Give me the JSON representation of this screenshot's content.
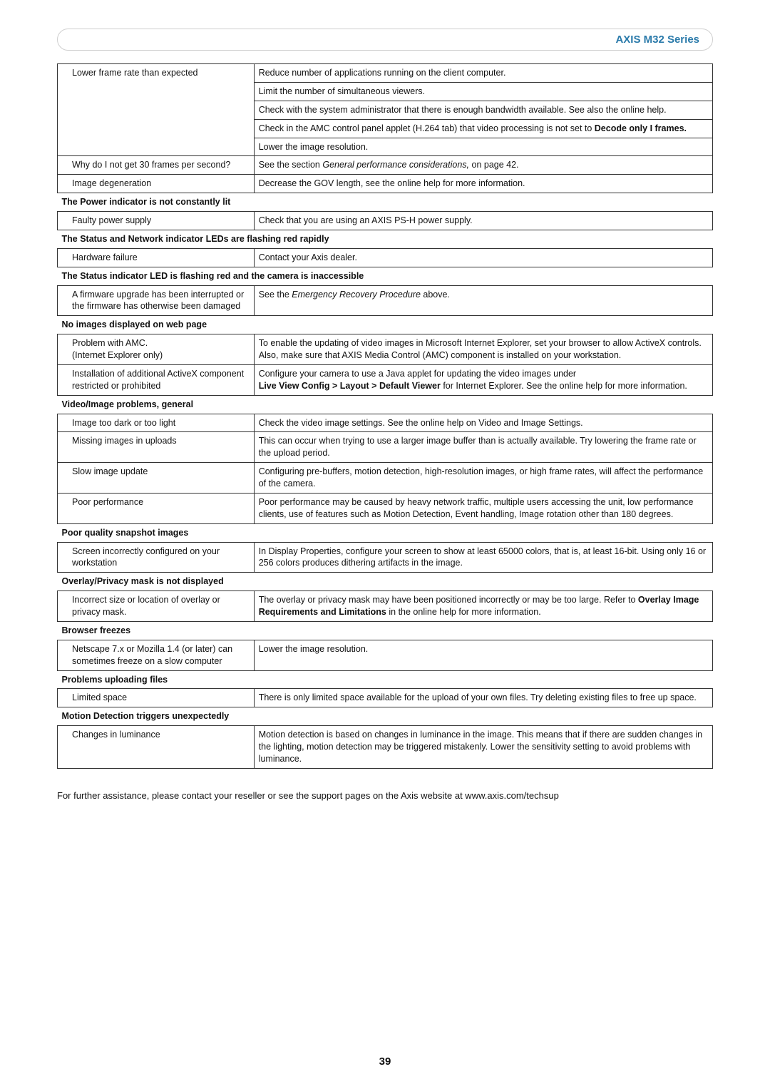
{
  "colors": {
    "headerText": "#2a7aaa",
    "bodyText": "#111111",
    "border": "#333333",
    "bannerBorder": "#cfcfcf",
    "background": "#ffffff"
  },
  "typography": {
    "bodyFontSizePt": 9,
    "headerFontSizePt": 11,
    "pageNumFontSizePt": 11,
    "fontFamily": "Helvetica Neue, Arial, sans-serif"
  },
  "header": {
    "title": "AXIS M32 Series"
  },
  "table": {
    "columnWidths": [
      "30%",
      "70%"
    ],
    "rows": [
      {
        "type": "data-first",
        "left": "Lower frame rate than expected",
        "right": "Reduce number of applications running on the client computer."
      },
      {
        "type": "data-cont",
        "right": "Limit the number of simultaneous viewers."
      },
      {
        "type": "data-cont",
        "right": "Check with the system administrator that there is enough bandwidth available. See also the online help."
      },
      {
        "type": "data-cont",
        "rightPrefix": "Check in the AMC control panel applet (H.264 tab) that video processing is not set to ",
        "rightBold": "Decode only I frames."
      },
      {
        "type": "data-cont",
        "right": "Lower the image resolution."
      },
      {
        "type": "data",
        "left": "Why do I not get 30 frames per second?",
        "rightPrefix": "See the section ",
        "rightItalic": "General performance considerations,",
        "rightSuffix": " on page 42."
      },
      {
        "type": "data",
        "left": "Image degeneration",
        "right": "Decrease the GOV length, see the online help for more information."
      },
      {
        "type": "section",
        "label": "The Power indicator is not constantly lit"
      },
      {
        "type": "data",
        "left": "Faulty power supply",
        "right": "Check that you are using an AXIS PS-H power supply."
      },
      {
        "type": "section",
        "label": "The Status and Network indicator LEDs are flashing red rapidly"
      },
      {
        "type": "data",
        "left": "Hardware failure",
        "right": "Contact your Axis dealer."
      },
      {
        "type": "section",
        "label": "The Status indicator LED is flashing red and the camera is inaccessible"
      },
      {
        "type": "data",
        "left": "A firmware upgrade has been interrupted or the firmware has otherwise been damaged",
        "rightPrefix": "See the ",
        "rightItalic": "Emergency Recovery Procedure",
        "rightSuffix": " above."
      },
      {
        "type": "section",
        "label": "No images displayed on web page"
      },
      {
        "type": "data",
        "left": "Problem with AMC.\n(Internet Explorer only)",
        "right": "To enable the updating of video images in Microsoft Internet Explorer, set your browser to allow ActiveX controls. Also, make sure that AXIS Media Control (AMC) component is installed on your workstation."
      },
      {
        "type": "data",
        "left": "Installation of additional ActiveX component restricted or prohibited",
        "rightPrefix": "Configure your camera to use a Java applet for updating the video images under\n",
        "rightBold": "Live View Config > Layout > Default Viewer",
        "rightSuffix": " for Internet Explorer. See the online help for more information."
      },
      {
        "type": "section",
        "label": "Video/Image problems, general"
      },
      {
        "type": "data",
        "left": "Image too dark or too light",
        "right": "Check the video image settings. See the online help on Video and Image Settings."
      },
      {
        "type": "data",
        "left": "Missing images in uploads",
        "right": "This can occur when trying to use a larger image buffer than is actually available. Try lowering the frame rate or the upload period."
      },
      {
        "type": "data",
        "left": "Slow image update",
        "right": "Configuring pre-buffers, motion detection, high-resolution images, or high frame rates, will affect the performance of the camera."
      },
      {
        "type": "data",
        "left": "Poor performance",
        "right": "Poor performance may be caused by heavy network traffic, multiple users accessing the unit, low performance clients, use of features such as Motion Detection, Event handling, Image rotation other than 180 degrees."
      },
      {
        "type": "section",
        "label": "Poor quality snapshot images"
      },
      {
        "type": "data",
        "left": "Screen incorrectly configured on your workstation",
        "right": "In Display Properties, configure your screen to show at least 65000 colors, that is, at least 16-bit. Using only 16 or 256 colors produces dithering artifacts in the image."
      },
      {
        "type": "section",
        "label": "Overlay/Privacy mask is not displayed"
      },
      {
        "type": "data",
        "left": "Incorrect size or location of overlay or privacy mask.",
        "rightPrefix": "The overlay or privacy mask may have been positioned incorrectly or may be too large. Refer to ",
        "rightBold": "Overlay Image Requirements and Limitations",
        "rightSuffix": " in the online help for more information."
      },
      {
        "type": "section",
        "label": "Browser freezes"
      },
      {
        "type": "data",
        "left": "Netscape 7.x or Mozilla 1.4 (or later) can sometimes freeze on a slow computer",
        "right": "Lower the image resolution."
      },
      {
        "type": "section",
        "label": "Problems uploading files"
      },
      {
        "type": "data",
        "left": "Limited space",
        "right": "There is only limited space available for the upload of your own files. Try deleting existing files to free up space."
      },
      {
        "type": "section",
        "label": "Motion Detection triggers unexpectedly"
      },
      {
        "type": "data",
        "left": "Changes in luminance",
        "right": "Motion detection is based on changes in luminance in the image. This means that if there are sudden changes in the lighting, motion detection may be triggered mistakenly. Lower the sensitivity setting to avoid problems with luminance."
      }
    ]
  },
  "footer": {
    "text": "For further assistance, please contact your reseller or see the support pages on the Axis website at www.axis.com/techsup"
  },
  "pageNumber": "39"
}
